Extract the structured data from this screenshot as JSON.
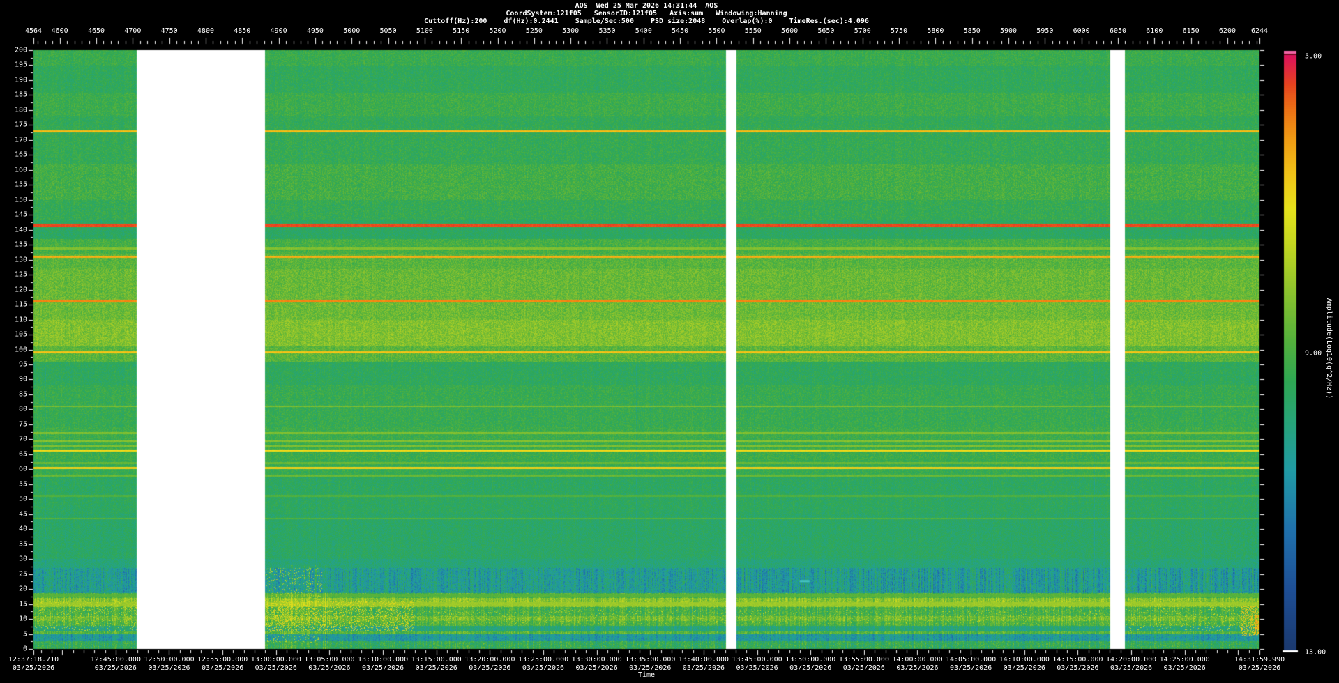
{
  "window": {
    "background": "#000000",
    "text_color": "#ffffff"
  },
  "header": {
    "line1": "AOS  Wed 25 Mar 2026 14:31:44  AOS",
    "line2_fields": [
      "CoordSystem:121f05",
      "SensorID:121f05",
      "Axis:sum",
      "Windowing:Hanning"
    ],
    "line3_fields": [
      "Cuttoff(Hz):200",
      "df(Hz):0.2441",
      "Sample/Sec:500",
      "PSD size:2048",
      "Overlap(%):0",
      "TimeRes.(sec):4.096"
    ]
  },
  "chart_data": {
    "type": "heatmap",
    "title": "AOS Wed 25 Mar 2026 14:31:44 AOS",
    "description": "PSD spectrogram: frequency (0-200 Hz) vs time, amplitude Log10(g^2/Hz) color mapped from -13 (blue) to -5 (magenta). Three white vertical data gaps. Strong persistent tonal lines at ~173, ~141.5, ~131, ~116, ~99, ~66, ~60 Hz; bright yellow broadband band 101-127 Hz; teal low-energy band 18-27 Hz; speckled energetic band 8-17 Hz with orange transients after 13:00 and at the right edge.",
    "y_axis": {
      "min": 0,
      "max": 200,
      "label_step": 5,
      "minor_step": 2.5
    },
    "top_axis": {
      "first": 4564,
      "last": 6244,
      "label_step": 50,
      "minor_step": 10,
      "labels": [
        4564,
        4600,
        4650,
        4700,
        4750,
        4800,
        4850,
        4900,
        4950,
        5000,
        5050,
        5100,
        5150,
        5200,
        5250,
        5300,
        5350,
        5400,
        5450,
        5500,
        5550,
        5600,
        5650,
        5700,
        5750,
        5800,
        5850,
        5900,
        5950,
        6000,
        6050,
        6100,
        6150,
        6200,
        6244
      ]
    },
    "x_axis": {
      "label": "Time",
      "start": "12:37:18.710",
      "end": "14:31:59.990",
      "date": "03/25/2026",
      "minor_tick_sec": 60,
      "major_tick_sec": 300,
      "labels": [
        {
          "time": "12:37:18.710",
          "date": "03/25/2026"
        },
        {
          "time": "12:45:00.000",
          "date": "03/25/2026"
        },
        {
          "time": "12:50:00.000",
          "date": "03/25/2026"
        },
        {
          "time": "12:55:00.000",
          "date": "03/25/2026"
        },
        {
          "time": "13:00:00.000",
          "date": "03/25/2026"
        },
        {
          "time": "13:05:00.000",
          "date": "03/25/2026"
        },
        {
          "time": "13:10:00.000",
          "date": "03/25/2026"
        },
        {
          "time": "13:15:00.000",
          "date": "03/25/2026"
        },
        {
          "time": "13:20:00.000",
          "date": "03/25/2026"
        },
        {
          "time": "13:25:00.000",
          "date": "03/25/2026"
        },
        {
          "time": "13:30:00.000",
          "date": "03/25/2026"
        },
        {
          "time": "13:35:00.000",
          "date": "03/25/2026"
        },
        {
          "time": "13:40:00.000",
          "date": "03/25/2026"
        },
        {
          "time": "13:45:00.000",
          "date": "03/25/2026"
        },
        {
          "time": "13:50:00.000",
          "date": "03/25/2026"
        },
        {
          "time": "13:55:00.000",
          "date": "03/25/2026"
        },
        {
          "time": "14:00:00.000",
          "date": "03/25/2026"
        },
        {
          "time": "14:05:00.000",
          "date": "03/25/2026"
        },
        {
          "time": "14:10:00.000",
          "date": "03/25/2026"
        },
        {
          "time": "14:15:00.000",
          "date": "03/25/2026"
        },
        {
          "time": "14:20:00.000",
          "date": "03/25/2026"
        },
        {
          "time": "14:25:00.000",
          "date": "03/25/2026"
        },
        {
          "time": "14:31:59.990",
          "date": "03/25/2026"
        }
      ]
    },
    "colorbar": {
      "min": -13,
      "max": -5,
      "tick_labels": [
        "-5.00",
        "-9.00",
        "-13.00"
      ],
      "label": "Amplitude(Log10(g^2/Hz))",
      "over_color": "#f163a5"
    },
    "data_gaps": [
      {
        "x0": 0.0842,
        "x1": 0.1888
      },
      {
        "x0": 0.5649,
        "x1": 0.5734
      },
      {
        "x0": 0.8783,
        "x1": 0.8902
      }
    ],
    "spectral_lines": [
      {
        "f": 173.0,
        "v": -6.5,
        "w": 0.4
      },
      {
        "f": 141.5,
        "v": -5.45,
        "w": 0.5
      },
      {
        "f": 133.8,
        "v": -8.3,
        "w": 0.3
      },
      {
        "f": 131.0,
        "v": -6.35,
        "w": 0.35
      },
      {
        "f": 116.2,
        "v": -5.95,
        "w": 0.4
      },
      {
        "f": 99.0,
        "v": -6.6,
        "w": 0.35
      },
      {
        "f": 81.0,
        "v": -8.4,
        "w": 0.3
      },
      {
        "f": 72.0,
        "v": -8.3,
        "w": 0.3
      },
      {
        "f": 69.3,
        "v": -8.2,
        "w": 0.3
      },
      {
        "f": 67.7,
        "v": -8.3,
        "w": 0.3
      },
      {
        "f": 66.2,
        "v": -6.9,
        "w": 0.35
      },
      {
        "f": 62.0,
        "v": -8.6,
        "w": 0.28
      },
      {
        "f": 60.4,
        "v": -6.8,
        "w": 0.35
      },
      {
        "f": 57.8,
        "v": -8.6,
        "w": 0.28
      },
      {
        "f": 51.0,
        "v": -8.9,
        "w": 0.3
      },
      {
        "f": 43.5,
        "v": -8.85,
        "w": 0.3
      },
      {
        "f": 17.6,
        "v": -8.8,
        "w": 0.35
      },
      {
        "f": 14.9,
        "v": -8.0,
        "w": 0.6
      }
    ],
    "bands": [
      [
        200.5,
        195,
        -9.25,
        0.45
      ],
      [
        195,
        186,
        -9.45,
        0.42
      ],
      [
        186,
        178,
        -9.2,
        0.45
      ],
      [
        178,
        174.5,
        -9.4,
        0.42
      ],
      [
        174.5,
        162,
        -9.35,
        0.45
      ],
      [
        162,
        150,
        -9.1,
        0.5
      ],
      [
        150,
        143.5,
        -9.35,
        0.45
      ],
      [
        143.5,
        137,
        -9.6,
        0.4
      ],
      [
        137,
        132,
        -9.05,
        0.45
      ],
      [
        132,
        127,
        -8.8,
        0.48
      ],
      [
        127,
        116.5,
        -8.6,
        0.5
      ],
      [
        116.5,
        110,
        -8.55,
        0.5
      ],
      [
        110,
        101,
        -8.3,
        0.5
      ],
      [
        101,
        96,
        -8.8,
        0.48
      ],
      [
        96,
        88,
        -9.5,
        0.42
      ],
      [
        88,
        74,
        -9.3,
        0.45
      ],
      [
        74,
        63,
        -9.2,
        0.45
      ],
      [
        63,
        58,
        -9.3,
        0.42
      ],
      [
        58,
        45,
        -9.55,
        0.42
      ],
      [
        45,
        30,
        -9.65,
        0.42
      ],
      [
        30,
        27,
        -9.9,
        0.45
      ],
      [
        27,
        18.5,
        -10.35,
        0.7
      ],
      [
        18.5,
        16.8,
        -8.95,
        0.55
      ],
      [
        16.8,
        13.8,
        -8.2,
        0.5
      ],
      [
        13.8,
        10.8,
        -9.05,
        0.6
      ],
      [
        10.8,
        9.2,
        -8.55,
        0.55
      ],
      [
        9.2,
        7.5,
        -8.95,
        0.55
      ],
      [
        7.5,
        5.6,
        -9.9,
        0.5
      ],
      [
        5.6,
        4.7,
        -8.85,
        0.5
      ],
      [
        4.7,
        2.4,
        -10.5,
        0.6
      ],
      [
        2.4,
        -0.5,
        -9.4,
        0.7
      ]
    ],
    "hot_regions": [
      [
        0.0,
        0.084,
        6,
        16,
        0.1,
        -7.4
      ],
      [
        0.189,
        0.31,
        6,
        16,
        0.2,
        -7.0
      ],
      [
        0.189,
        0.235,
        2,
        27,
        0.1,
        -7.7
      ],
      [
        0.31,
        0.565,
        8,
        13,
        0.05,
        -7.6
      ],
      [
        0.574,
        0.878,
        8,
        13,
        0.05,
        -7.6
      ],
      [
        0.89,
        1.0,
        6,
        15,
        0.08,
        -7.4
      ],
      [
        0.985,
        1.0,
        4,
        14,
        0.3,
        -6.7
      ],
      [
        0.996,
        1.0,
        5,
        11,
        0.5,
        -6.3
      ]
    ],
    "colormap_stops": [
      [
        0.0,
        "#1b3a70"
      ],
      [
        0.1,
        "#1e4f96"
      ],
      [
        0.2,
        "#2071ad"
      ],
      [
        0.3,
        "#219ba6"
      ],
      [
        0.38,
        "#27a57b"
      ],
      [
        0.45,
        "#2fa854"
      ],
      [
        0.52,
        "#55b23c"
      ],
      [
        0.6,
        "#8cc32e"
      ],
      [
        0.68,
        "#c4d821"
      ],
      [
        0.74,
        "#e7e31c"
      ],
      [
        0.8,
        "#f2c318"
      ],
      [
        0.86,
        "#f09a14"
      ],
      [
        0.91,
        "#ec6f16"
      ],
      [
        0.95,
        "#e6431f"
      ],
      [
        1.0,
        "#dc1060"
      ]
    ],
    "features": {
      "cyan_dash": {
        "x": 0.625,
        "f": 23
      }
    }
  }
}
